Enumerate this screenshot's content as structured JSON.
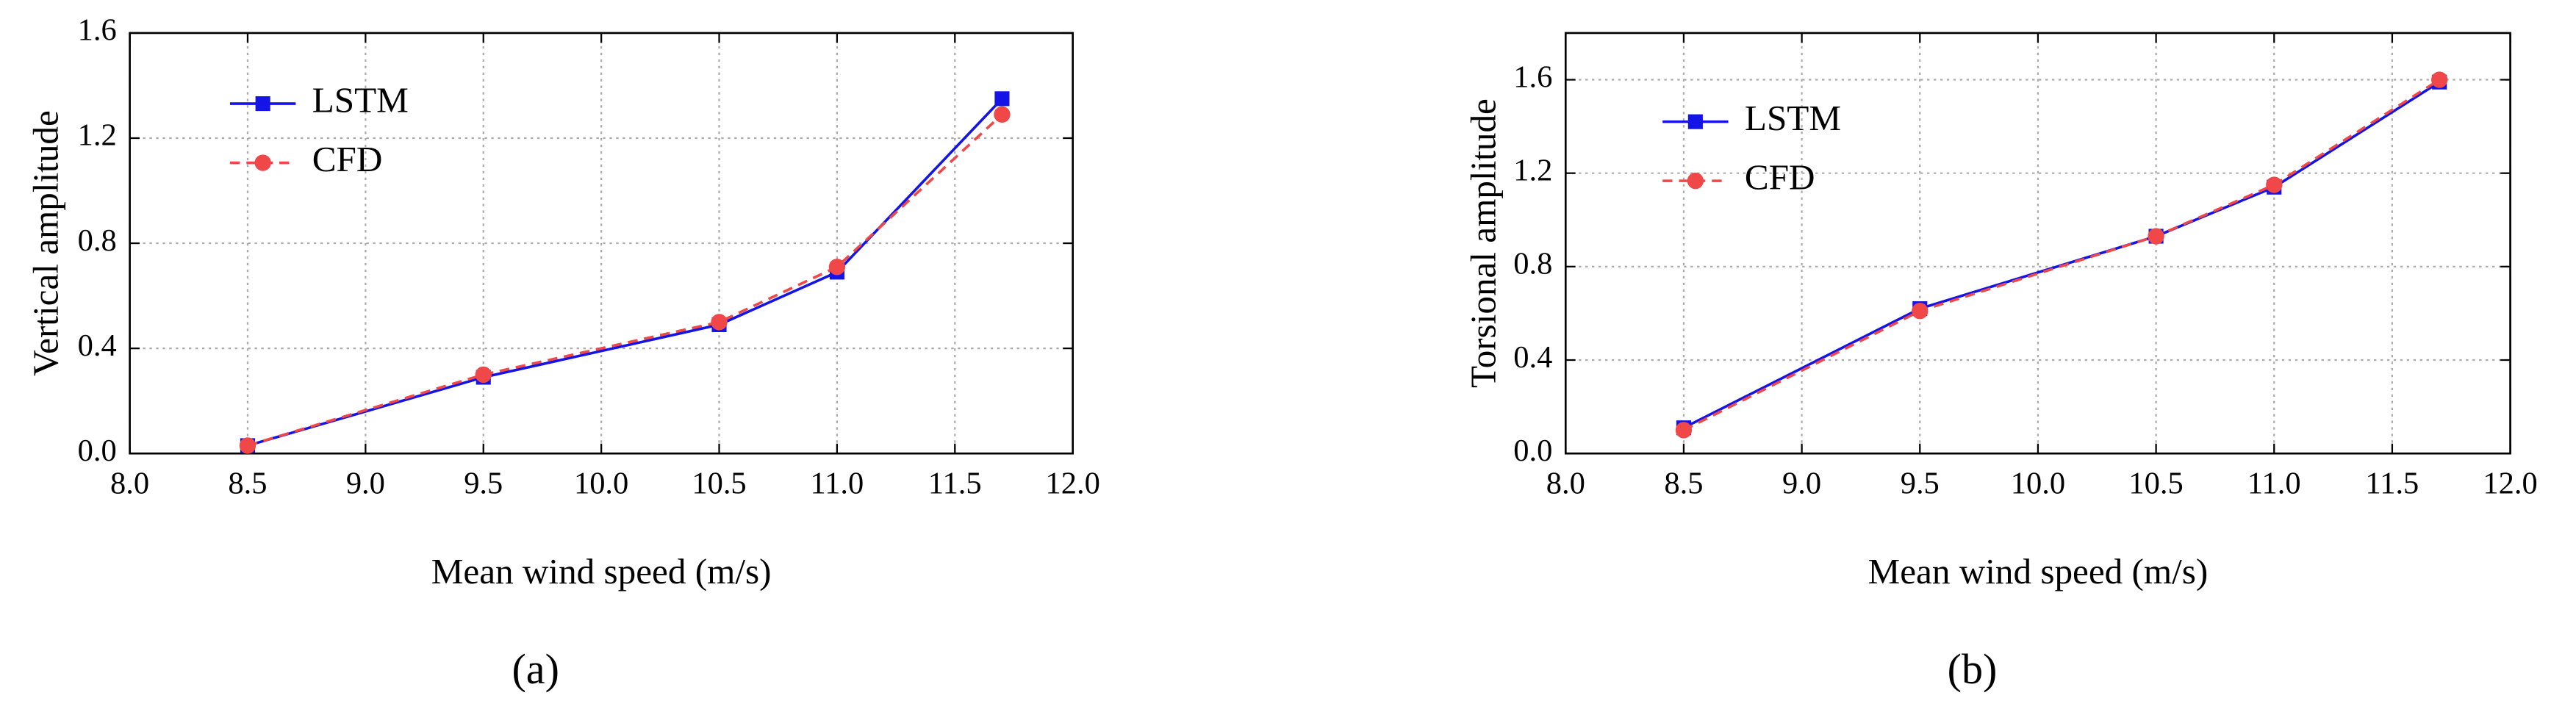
{
  "chart_data": [
    {
      "type": "line",
      "caption": "(a)",
      "xlabel": "Mean wind speed (m/s)",
      "ylabel": "Vertical amplitude",
      "x": [
        8.5,
        9.5,
        10.5,
        11.0,
        11.7
      ],
      "series": [
        {
          "name": "LSTM",
          "color": "#1414e6",
          "values": [
            0.03,
            0.29,
            0.49,
            0.69,
            1.35
          ]
        },
        {
          "name": "CFD",
          "color": "#f04848",
          "values": [
            0.03,
            0.3,
            0.5,
            0.71,
            1.29
          ]
        }
      ],
      "xlim": [
        8,
        12
      ],
      "xticks": [
        {
          "value": 8,
          "label": "8.0"
        },
        {
          "value": 8.5,
          "label": "8.5"
        },
        {
          "value": 9,
          "label": "9.0"
        },
        {
          "value": 9.5,
          "label": "9.5"
        },
        {
          "value": 10,
          "label": "10.0"
        },
        {
          "value": 10.5,
          "label": "10.5"
        },
        {
          "value": 11,
          "label": "11.0"
        },
        {
          "value": 11.5,
          "label": "11.5"
        },
        {
          "value": 12,
          "label": "12.0"
        }
      ],
      "ylim": [
        0,
        1.6
      ],
      "yticks": [
        {
          "value": 0,
          "label": "0.0"
        },
        {
          "value": 0.4,
          "label": "0.4"
        },
        {
          "value": 0.8,
          "label": "0.8"
        },
        {
          "value": 1.2,
          "label": "1.2"
        },
        {
          "value": 1.6,
          "label": "1.6"
        }
      ],
      "grid": true,
      "legend": "upper left"
    },
    {
      "type": "line",
      "caption": "(b)",
      "xlabel": "Mean wind speed (m/s)",
      "ylabel": "Torsional amplitude",
      "x": [
        8.5,
        9.5,
        10.5,
        11.0,
        11.7
      ],
      "series": [
        {
          "name": "LSTM",
          "color": "#1414e6",
          "values": [
            0.11,
            0.62,
            0.93,
            1.14,
            1.59
          ]
        },
        {
          "name": "CFD",
          "color": "#f04848",
          "values": [
            0.1,
            0.61,
            0.93,
            1.15,
            1.6
          ]
        }
      ],
      "xlim": [
        8,
        12
      ],
      "xticks": [
        {
          "value": 8,
          "label": "8.0"
        },
        {
          "value": 8.5,
          "label": "8.5"
        },
        {
          "value": 9,
          "label": "9.0"
        },
        {
          "value": 9.5,
          "label": "9.5"
        },
        {
          "value": 10,
          "label": "10.0"
        },
        {
          "value": 10.5,
          "label": "10.5"
        },
        {
          "value": 11,
          "label": "11.0"
        },
        {
          "value": 11.5,
          "label": "11.5"
        },
        {
          "value": 12,
          "label": "12.0"
        }
      ],
      "ylim": [
        0,
        1.8
      ],
      "yticks": [
        {
          "value": 0,
          "label": "0.0"
        },
        {
          "value": 0.4,
          "label": "0.4"
        },
        {
          "value": 0.8,
          "label": "0.8"
        },
        {
          "value": 1.2,
          "label": "1.2"
        },
        {
          "value": 1.6,
          "label": "1.6"
        }
      ],
      "grid": true,
      "legend": "upper left"
    }
  ]
}
